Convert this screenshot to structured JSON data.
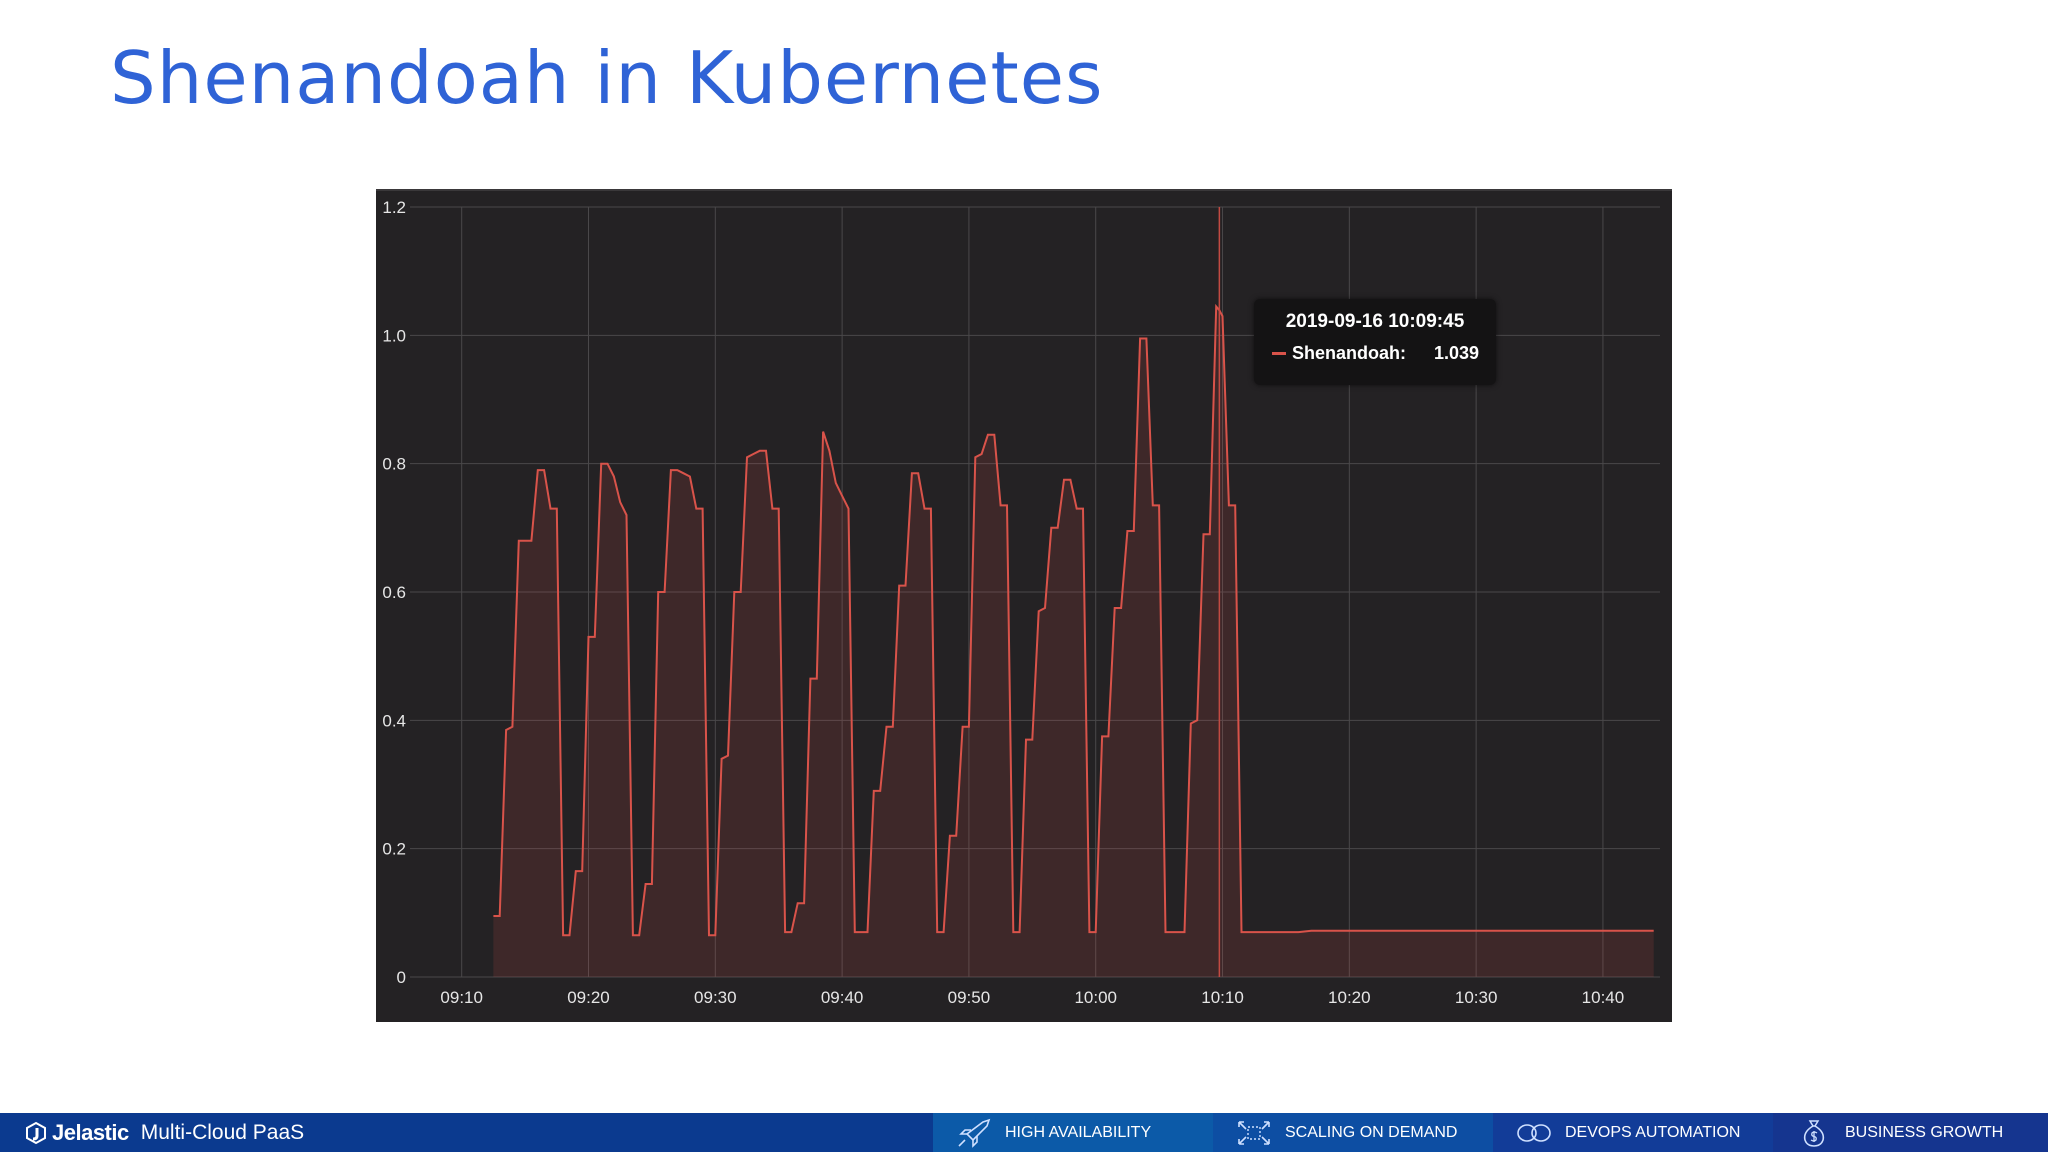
{
  "slide": {
    "title": "Shenandoah in Kubernetes"
  },
  "chart_data": {
    "type": "area",
    "title": "",
    "xlabel": "",
    "ylabel": "",
    "x_ticks": [
      "09:10",
      "09:20",
      "09:30",
      "09:40",
      "09:50",
      "10:00",
      "10:10",
      "10:20",
      "10:30",
      "10:40"
    ],
    "y_ticks": [
      "0",
      "0.2",
      "0.4",
      "0.6",
      "0.8",
      "1.0",
      "1.2"
    ],
    "ylim": [
      0,
      1.2
    ],
    "xlim": [
      "09:07:30",
      "10:44:30"
    ],
    "grid": true,
    "colors": {
      "series": "#d9534a",
      "background": "#242224",
      "grid": "#4a484a"
    },
    "series": [
      {
        "name": "Shenandoah",
        "points": [
          [
            "09:12:30",
            0.095
          ],
          [
            "09:13:00",
            0.095
          ],
          [
            "09:13:30",
            0.385
          ],
          [
            "09:14:00",
            0.39
          ],
          [
            "09:14:30",
            0.68
          ],
          [
            "09:15:00",
            0.68
          ],
          [
            "09:15:30",
            0.68
          ],
          [
            "09:16:00",
            0.79
          ],
          [
            "09:16:30",
            0.79
          ],
          [
            "09:17:00",
            0.73
          ],
          [
            "09:17:30",
            0.73
          ],
          [
            "09:18:00",
            0.065
          ],
          [
            "09:18:30",
            0.065
          ],
          [
            "09:19:00",
            0.165
          ],
          [
            "09:19:30",
            0.165
          ],
          [
            "09:20:00",
            0.53
          ],
          [
            "09:20:30",
            0.53
          ],
          [
            "09:21:00",
            0.8
          ],
          [
            "09:21:30",
            0.8
          ],
          [
            "09:22:00",
            0.78
          ],
          [
            "09:22:30",
            0.74
          ],
          [
            "09:23:00",
            0.72
          ],
          [
            "09:23:30",
            0.065
          ],
          [
            "09:24:00",
            0.065
          ],
          [
            "09:24:30",
            0.145
          ],
          [
            "09:25:00",
            0.145
          ],
          [
            "09:25:30",
            0.6
          ],
          [
            "09:26:00",
            0.6
          ],
          [
            "09:26:30",
            0.79
          ],
          [
            "09:27:00",
            0.79
          ],
          [
            "09:27:30",
            0.785
          ],
          [
            "09:28:00",
            0.78
          ],
          [
            "09:28:30",
            0.73
          ],
          [
            "09:29:00",
            0.73
          ],
          [
            "09:29:30",
            0.065
          ],
          [
            "09:30:00",
            0.065
          ],
          [
            "09:30:30",
            0.34
          ],
          [
            "09:31:00",
            0.345
          ],
          [
            "09:31:30",
            0.6
          ],
          [
            "09:32:00",
            0.6
          ],
          [
            "09:32:30",
            0.81
          ],
          [
            "09:33:00",
            0.815
          ],
          [
            "09:33:30",
            0.82
          ],
          [
            "09:34:00",
            0.82
          ],
          [
            "09:34:30",
            0.73
          ],
          [
            "09:35:00",
            0.73
          ],
          [
            "09:35:30",
            0.07
          ],
          [
            "09:36:00",
            0.07
          ],
          [
            "09:36:30",
            0.115
          ],
          [
            "09:37:00",
            0.115
          ],
          [
            "09:37:30",
            0.465
          ],
          [
            "09:38:00",
            0.465
          ],
          [
            "09:38:30",
            0.85
          ],
          [
            "09:39:00",
            0.82
          ],
          [
            "09:39:30",
            0.77
          ],
          [
            "09:40:00",
            0.75
          ],
          [
            "09:40:30",
            0.73
          ],
          [
            "09:41:00",
            0.07
          ],
          [
            "09:41:30",
            0.07
          ],
          [
            "09:42:00",
            0.07
          ],
          [
            "09:42:30",
            0.29
          ],
          [
            "09:43:00",
            0.29
          ],
          [
            "09:43:30",
            0.39
          ],
          [
            "09:44:00",
            0.39
          ],
          [
            "09:44:30",
            0.61
          ],
          [
            "09:45:00",
            0.61
          ],
          [
            "09:45:30",
            0.785
          ],
          [
            "09:46:00",
            0.785
          ],
          [
            "09:46:30",
            0.73
          ],
          [
            "09:47:00",
            0.73
          ],
          [
            "09:47:30",
            0.07
          ],
          [
            "09:48:00",
            0.07
          ],
          [
            "09:48:30",
            0.22
          ],
          [
            "09:49:00",
            0.22
          ],
          [
            "09:49:30",
            0.39
          ],
          [
            "09:50:00",
            0.39
          ],
          [
            "09:50:30",
            0.81
          ],
          [
            "09:51:00",
            0.815
          ],
          [
            "09:51:30",
            0.845
          ],
          [
            "09:52:00",
            0.845
          ],
          [
            "09:52:30",
            0.735
          ],
          [
            "09:53:00",
            0.735
          ],
          [
            "09:53:30",
            0.07
          ],
          [
            "09:54:00",
            0.07
          ],
          [
            "09:54:30",
            0.37
          ],
          [
            "09:55:00",
            0.37
          ],
          [
            "09:55:30",
            0.57
          ],
          [
            "09:56:00",
            0.575
          ],
          [
            "09:56:30",
            0.7
          ],
          [
            "09:57:00",
            0.7
          ],
          [
            "09:57:30",
            0.775
          ],
          [
            "09:58:00",
            0.775
          ],
          [
            "09:58:30",
            0.73
          ],
          [
            "09:59:00",
            0.73
          ],
          [
            "09:59:30",
            0.07
          ],
          [
            "10:00:00",
            0.07
          ],
          [
            "10:00:30",
            0.375
          ],
          [
            "10:01:00",
            0.375
          ],
          [
            "10:01:30",
            0.575
          ],
          [
            "10:02:00",
            0.575
          ],
          [
            "10:02:30",
            0.695
          ],
          [
            "10:03:00",
            0.695
          ],
          [
            "10:03:30",
            0.995
          ],
          [
            "10:04:00",
            0.995
          ],
          [
            "10:04:30",
            0.735
          ],
          [
            "10:05:00",
            0.735
          ],
          [
            "10:05:30",
            0.07
          ],
          [
            "10:06:00",
            0.07
          ],
          [
            "10:06:30",
            0.07
          ],
          [
            "10:07:00",
            0.07
          ],
          [
            "10:07:30",
            0.395
          ],
          [
            "10:08:00",
            0.4
          ],
          [
            "10:08:30",
            0.69
          ],
          [
            "10:09:00",
            0.69
          ],
          [
            "10:09:30",
            1.045
          ],
          [
            "10:09:45",
            1.039
          ],
          [
            "10:10:00",
            1.03
          ],
          [
            "10:10:30",
            0.735
          ],
          [
            "10:11:00",
            0.735
          ],
          [
            "10:11:30",
            0.07
          ],
          [
            "10:12:00",
            0.07
          ],
          [
            "10:16:00",
            0.07
          ],
          [
            "10:17:00",
            0.072
          ],
          [
            "10:25:00",
            0.072
          ],
          [
            "10:35:00",
            0.072
          ],
          [
            "10:44:00",
            0.072
          ]
        ]
      }
    ],
    "tooltip": {
      "time": "2019-09-16 10:09:45",
      "series": "Shenandoah:",
      "value": "1.039"
    },
    "cursor_time": "10:09:45"
  },
  "footer": {
    "brand_name": "Jelastic",
    "tagline": "Multi-Cloud PaaS",
    "items": [
      {
        "label": "HIGH AVAILABILITY",
        "icon": "rocket-icon"
      },
      {
        "label": "SCALING ON DEMAND",
        "icon": "scaling-arrows-icon"
      },
      {
        "label": "DEVOPS AUTOMATION",
        "icon": "infinity-icon"
      },
      {
        "label": "BUSINESS GROWTH",
        "icon": "money-bag-icon"
      }
    ]
  }
}
